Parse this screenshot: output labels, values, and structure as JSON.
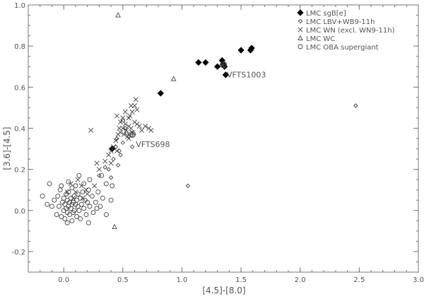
{
  "chart_data": {
    "type": "scatter",
    "title": "",
    "xlabel": "[4.5]-[8.0]",
    "ylabel": "[3.6]-[4.5]",
    "xlim": [
      -0.3,
      3.0
    ],
    "ylim": [
      -0.3,
      1.0
    ],
    "xticks": [
      0.0,
      0.5,
      1.0,
      1.5,
      2.0,
      2.5,
      3.0
    ],
    "xtick_labels": [
      "0.0",
      "0.5",
      "1.0",
      "1.5",
      "2.0",
      "2.5",
      "3.0"
    ],
    "yticks": [
      -0.2,
      0.0,
      0.2,
      0.4,
      0.6,
      0.8,
      1.0
    ],
    "ytick_labels": [
      "-0.2",
      "0.0",
      "0.2",
      "0.4",
      "0.6",
      "0.8",
      "1.0"
    ],
    "grid": false,
    "legend_position": "top-right",
    "series": [
      {
        "name": "LMC sgB[e]",
        "marker": "filled-diamond",
        "points": [
          [
            0.41,
            0.3
          ],
          [
            0.82,
            0.57
          ],
          [
            1.14,
            0.72
          ],
          [
            1.2,
            0.72
          ],
          [
            1.3,
            0.7
          ],
          [
            1.34,
            0.73
          ],
          [
            1.35,
            0.71
          ],
          [
            1.36,
            0.7
          ],
          [
            1.37,
            0.66
          ],
          [
            1.5,
            0.78
          ],
          [
            1.58,
            0.78
          ],
          [
            1.59,
            0.79
          ]
        ]
      },
      {
        "name": "LMC LBV+WB9-11h",
        "marker": "open-diamond",
        "points": [
          [
            0.38,
            0.2
          ],
          [
            0.42,
            0.25
          ],
          [
            0.44,
            0.31
          ],
          [
            0.46,
            0.22
          ],
          [
            0.48,
            0.27
          ],
          [
            0.5,
            0.33
          ],
          [
            0.52,
            0.4
          ],
          [
            0.55,
            0.36
          ],
          [
            0.47,
            0.29
          ],
          [
            0.45,
            0.35
          ],
          [
            0.35,
            0.21
          ],
          [
            0.4,
            0.16
          ],
          [
            0.3,
            0.17
          ],
          [
            0.58,
            0.31
          ],
          [
            1.05,
            0.12
          ],
          [
            2.47,
            0.51
          ]
        ]
      },
      {
        "name": "LMC WN (excl. WN9-11h)",
        "marker": "cross",
        "points": [
          [
            0.23,
            0.39
          ],
          [
            0.3,
            0.2
          ],
          [
            0.35,
            0.24
          ],
          [
            0.38,
            0.27
          ],
          [
            0.4,
            0.29
          ],
          [
            0.4,
            0.23
          ],
          [
            0.42,
            0.31
          ],
          [
            0.44,
            0.34
          ],
          [
            0.45,
            0.29
          ],
          [
            0.45,
            0.46
          ],
          [
            0.46,
            0.37
          ],
          [
            0.47,
            0.4
          ],
          [
            0.48,
            0.38
          ],
          [
            0.48,
            0.43
          ],
          [
            0.5,
            0.4
          ],
          [
            0.5,
            0.45
          ],
          [
            0.51,
            0.37
          ],
          [
            0.52,
            0.42
          ],
          [
            0.52,
            0.48
          ],
          [
            0.53,
            0.39
          ],
          [
            0.54,
            0.36
          ],
          [
            0.55,
            0.41
          ],
          [
            0.55,
            0.35
          ],
          [
            0.56,
            0.46
          ],
          [
            0.57,
            0.4
          ],
          [
            0.58,
            0.48
          ],
          [
            0.58,
            0.38
          ],
          [
            0.6,
            0.51
          ],
          [
            0.6,
            0.43
          ],
          [
            0.62,
            0.49
          ],
          [
            0.62,
            0.42
          ],
          [
            0.64,
            0.41
          ],
          [
            0.66,
            0.39
          ],
          [
            0.69,
            0.41
          ],
          [
            0.72,
            0.4
          ],
          [
            0.74,
            0.39
          ],
          [
            0.61,
            0.54
          ],
          [
            0.57,
            0.51
          ],
          [
            0.28,
            0.23
          ],
          [
            0.19,
            0.1
          ],
          [
            0.2,
            0.08
          ],
          [
            0.15,
            0.12
          ],
          [
            0.1,
            0.09
          ],
          [
            0.06,
            0.13
          ],
          [
            0.08,
            0.06
          ],
          [
            0.03,
            0.09
          ],
          [
            0.26,
            0.12
          ],
          [
            0.16,
            0.06
          ],
          [
            0.12,
            0.15
          ],
          [
            0.55,
            0.45
          ]
        ]
      },
      {
        "name": "LMC WC",
        "marker": "open-triangle",
        "points": [
          [
            0.46,
            0.95
          ],
          [
            0.93,
            0.64
          ],
          [
            0.43,
            -0.08
          ],
          [
            0.5,
            0.44
          ],
          [
            0.53,
            0.38
          ]
        ]
      },
      {
        "name": "LMC OBA supergiant",
        "marker": "open-circle",
        "points": [
          [
            -0.18,
            0.07
          ],
          [
            -0.14,
            0.03
          ],
          [
            -0.1,
            0.02
          ],
          [
            -0.12,
            0.13
          ],
          [
            -0.08,
            0.05
          ],
          [
            -0.06,
            -0.02
          ],
          [
            -0.05,
            0.07
          ],
          [
            -0.04,
            0.02
          ],
          [
            -0.03,
            0.1
          ],
          [
            -0.02,
            -0.03
          ],
          [
            -0.01,
            0.04
          ],
          [
            0.0,
            0.06
          ],
          [
            0.0,
            0.0
          ],
          [
            0.01,
            0.03
          ],
          [
            0.01,
            -0.04
          ],
          [
            0.02,
            0.08
          ],
          [
            0.02,
            0.01
          ],
          [
            0.03,
            0.05
          ],
          [
            0.03,
            -0.01
          ],
          [
            0.04,
            0.02
          ],
          [
            0.04,
            0.09
          ],
          [
            0.05,
            0.04
          ],
          [
            0.05,
            -0.02
          ],
          [
            0.06,
            0.06
          ],
          [
            0.06,
            0.01
          ],
          [
            0.07,
            0.03
          ],
          [
            0.07,
            0.11
          ],
          [
            0.08,
            -0.01
          ],
          [
            0.08,
            0.04
          ],
          [
            0.09,
            0.07
          ],
          [
            0.09,
            0.0
          ],
          [
            0.1,
            0.03
          ],
          [
            0.1,
            0.12
          ],
          [
            0.11,
            0.05
          ],
          [
            0.11,
            -0.03
          ],
          [
            0.12,
            0.02
          ],
          [
            0.12,
            0.08
          ],
          [
            0.13,
            0.0
          ],
          [
            0.14,
            0.06
          ],
          [
            0.14,
            -0.04
          ],
          [
            0.15,
            0.03
          ],
          [
            0.16,
            0.09
          ],
          [
            0.17,
            0.01
          ],
          [
            0.18,
            0.05
          ],
          [
            0.19,
            -0.02
          ],
          [
            0.2,
            0.04
          ],
          [
            0.21,
            0.1
          ],
          [
            0.22,
            0.02
          ],
          [
            0.24,
            0.07
          ],
          [
            0.25,
            -0.01
          ],
          [
            0.27,
            0.04
          ],
          [
            0.29,
            0.09
          ],
          [
            0.31,
            0.02
          ],
          [
            0.33,
            0.06
          ],
          [
            0.36,
            0.13
          ],
          [
            0.4,
            0.05
          ],
          [
            0.21,
            -0.06
          ],
          [
            0.07,
            -0.05
          ],
          [
            -0.02,
            0.12
          ],
          [
            0.17,
            0.13
          ],
          [
            0.36,
            -0.02
          ],
          [
            0.41,
            0.12
          ],
          [
            0.22,
            0.15
          ],
          [
            0.28,
            0.01
          ],
          [
            0.32,
            0.17
          ],
          [
            0.58,
            0.37
          ],
          [
            1.36,
            0.71
          ],
          [
            0.04,
            0.14
          ],
          [
            0.13,
            0.17
          ],
          [
            0.03,
            -0.06
          ]
        ]
      }
    ],
    "annotations": [
      {
        "text": "VFTS1003",
        "x": 1.35,
        "y": 0.71,
        "target_marker": "circle-cross"
      },
      {
        "text": "VFTS698",
        "x": 0.58,
        "y": 0.37,
        "target_marker": "circle-cross"
      }
    ]
  }
}
